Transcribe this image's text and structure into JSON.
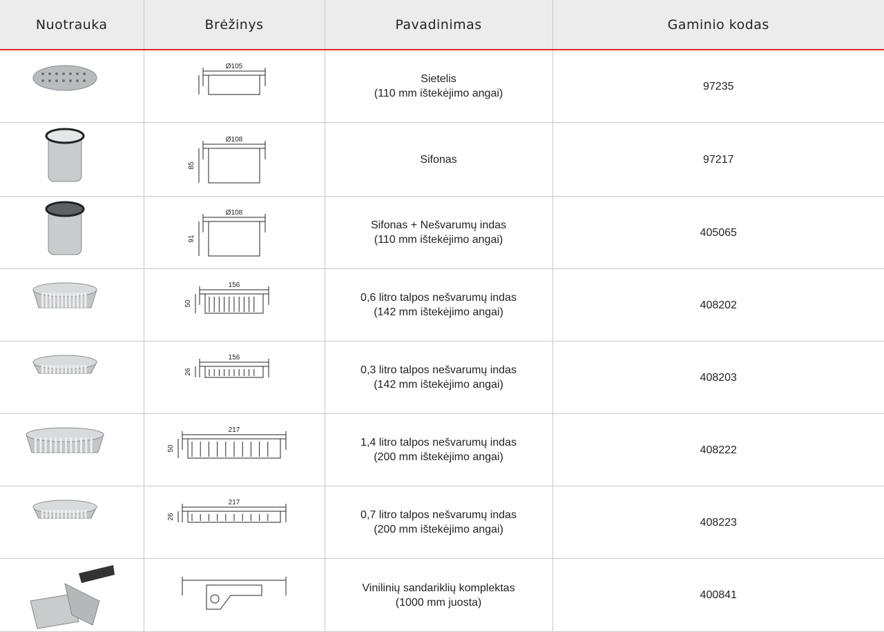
{
  "table": {
    "header": [
      "Nuotrauka",
      "Brėžinys",
      "Pavadinimas",
      "Gaminio kodas"
    ],
    "rows": [
      {
        "drawing": {
          "width": "Ø105"
        },
        "name": [
          "Sietelis",
          "(110 mm ištekėjimo angai)"
        ],
        "code": "97235"
      },
      {
        "drawing": {
          "width": "Ø108",
          "height": "85"
        },
        "name": [
          "Sifonas"
        ],
        "code": "97217"
      },
      {
        "drawing": {
          "width": "Ø108",
          "height": "91"
        },
        "name": [
          "Sifonas + Nešvarumų indas",
          "(110 mm ištekėjimo angai)"
        ],
        "code": "405065"
      },
      {
        "drawing": {
          "width": "156",
          "height": "50"
        },
        "name": [
          "0,6 litro talpos nešvarumų indas",
          "(142 mm ištekėjimo angai)"
        ],
        "code": "408202"
      },
      {
        "drawing": {
          "width": "156",
          "height": "26"
        },
        "name": [
          "0,3 litro talpos nešvarumų indas",
          "(142 mm ištekėjimo angai)"
        ],
        "code": "408203"
      },
      {
        "drawing": {
          "width": "217",
          "height": "50"
        },
        "name": [
          "1,4 litro talpos nešvarumų indas",
          "(200 mm ištekėjimo angai)"
        ],
        "code": "408222"
      },
      {
        "drawing": {
          "width": "217",
          "height": "26"
        },
        "name": [
          "0,7 litro talpos nešvarumų indas",
          "(200 mm ištekėjimo angai)"
        ],
        "code": "408223"
      },
      {
        "drawing": {},
        "name": [
          "Vinilinių sandariklių komplektas",
          "(1000 mm juosta)"
        ],
        "code": "400841"
      }
    ]
  }
}
